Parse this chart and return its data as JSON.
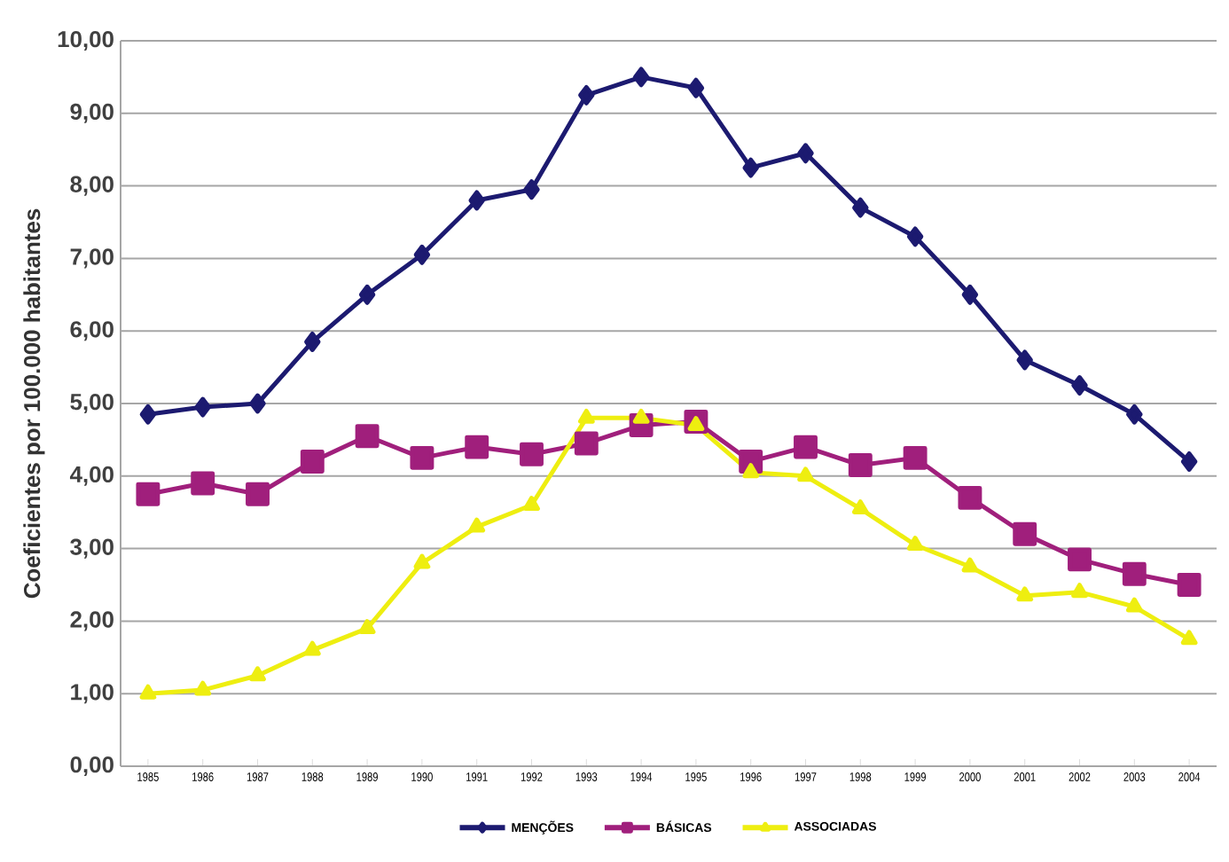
{
  "chart_data": {
    "type": "line",
    "ylabel": "Coeficientes por 100.000 habitantes",
    "categories": [
      "1985",
      "1986",
      "1987",
      "1988",
      "1989",
      "1990",
      "1991",
      "1992",
      "1993",
      "1994",
      "1995",
      "1996",
      "1997",
      "1998",
      "1999",
      "2000",
      "2001",
      "2002",
      "2003",
      "2004"
    ],
    "series": [
      {
        "name": "MENÇÕES",
        "color": "#1c1a70",
        "marker": "diamond",
        "values": [
          4.85,
          4.95,
          5.0,
          5.85,
          6.5,
          7.05,
          7.8,
          7.95,
          9.25,
          9.5,
          9.35,
          8.25,
          8.45,
          7.7,
          7.3,
          6.5,
          5.6,
          5.25,
          4.85,
          4.2
        ]
      },
      {
        "name": "BÁSICAS",
        "color": "#a01f7c",
        "marker": "square",
        "values": [
          3.75,
          3.9,
          3.75,
          4.2,
          4.55,
          4.25,
          4.4,
          4.3,
          4.45,
          4.7,
          4.75,
          4.2,
          4.4,
          4.15,
          4.25,
          3.7,
          3.2,
          2.85,
          2.65,
          2.5
        ]
      },
      {
        "name": "ASSOCIADAS",
        "color": "#eeee10",
        "marker": "triangle",
        "values": [
          1.0,
          1.05,
          1.25,
          1.6,
          1.9,
          2.8,
          3.3,
          3.6,
          4.8,
          4.8,
          4.7,
          4.05,
          4.0,
          3.55,
          3.05,
          2.75,
          2.35,
          2.4,
          2.2,
          1.75
        ]
      }
    ],
    "ylim": [
      0,
      10
    ],
    "yticks": [
      {
        "value": 0,
        "label": "0,00"
      },
      {
        "value": 1,
        "label": "1,00"
      },
      {
        "value": 2,
        "label": "2,00"
      },
      {
        "value": 3,
        "label": "3,00"
      },
      {
        "value": 4,
        "label": "4,00"
      },
      {
        "value": 5,
        "label": "5,00"
      },
      {
        "value": 6,
        "label": "6,00"
      },
      {
        "value": 7,
        "label": "7,00"
      },
      {
        "value": 8,
        "label": "8,00"
      },
      {
        "value": 9,
        "label": "9,00"
      },
      {
        "value": 10,
        "label": "10,00"
      }
    ],
    "grid": "y",
    "legend": "bottom",
    "line_style": "solid"
  }
}
